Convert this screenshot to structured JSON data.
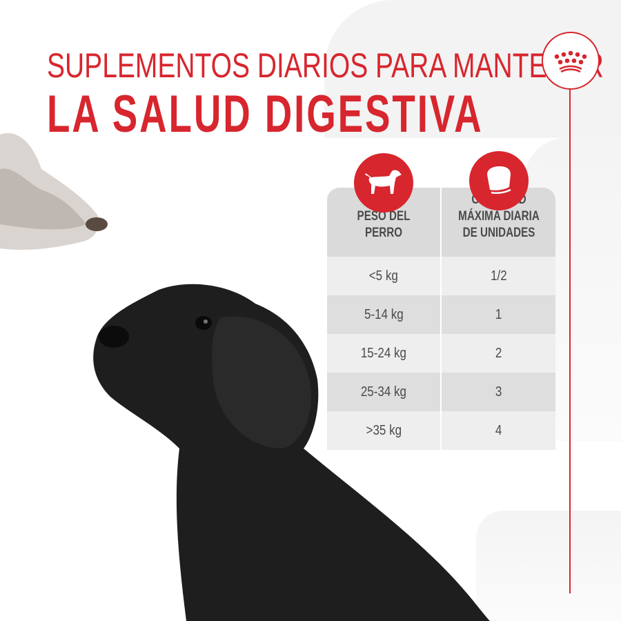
{
  "title": {
    "line1": "SUPLEMENTOS DIARIOS PARA MANTENER",
    "line2": "LA SALUD DIGESTIVA"
  },
  "colors": {
    "accent": "#d7262e",
    "text": "#4a4a4a"
  },
  "logo": {
    "icon": "royal-canin-crown-icon"
  },
  "table": {
    "headers": [
      {
        "icon": "dog-icon",
        "label": "PESO DEL PERRO"
      },
      {
        "icon": "supplement-chew-icon",
        "label": "CANTIDAD MÁXIMA DIARIA DE UNIDADES"
      }
    ],
    "rows": [
      {
        "weight": "<5 kg",
        "units": "1/2"
      },
      {
        "weight": "5-14 kg",
        "units": "1"
      },
      {
        "weight": "15-24 kg",
        "units": "2"
      },
      {
        "weight": "25-34 kg",
        "units": "3"
      },
      {
        "weight": ">35 kg",
        "units": "4"
      }
    ]
  }
}
